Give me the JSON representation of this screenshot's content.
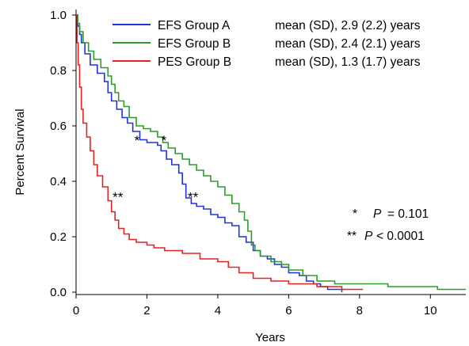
{
  "chart_data": {
    "type": "line",
    "xlabel": "Years",
    "ylabel": "Percent Survival",
    "xlim": [
      0,
      11
    ],
    "ylim": [
      0,
      1.0
    ],
    "x_ticks": [
      "0",
      "2",
      "4",
      "6",
      "8",
      "10"
    ],
    "y_ticks": [
      "0.0",
      "0.2",
      "0.4",
      "0.6",
      "0.8",
      "1.0"
    ],
    "grid": false,
    "legend_position": "top-right",
    "series": [
      {
        "name": "EFS Group A",
        "stat": "mean (SD),  2.9 (2.2) years",
        "color": "#1f35d6",
        "points": [
          [
            0,
            1.0
          ],
          [
            0.05,
            0.96
          ],
          [
            0.1,
            0.93
          ],
          [
            0.15,
            0.9
          ],
          [
            0.25,
            0.86
          ],
          [
            0.4,
            0.82
          ],
          [
            0.6,
            0.79
          ],
          [
            0.8,
            0.76
          ],
          [
            0.9,
            0.72
          ],
          [
            1.0,
            0.69
          ],
          [
            1.15,
            0.66
          ],
          [
            1.3,
            0.63
          ],
          [
            1.45,
            0.61
          ],
          [
            1.6,
            0.58
          ],
          [
            1.8,
            0.55
          ],
          [
            2.0,
            0.54
          ],
          [
            2.3,
            0.53
          ],
          [
            2.4,
            0.51
          ],
          [
            2.55,
            0.48
          ],
          [
            2.7,
            0.46
          ],
          [
            2.9,
            0.43
          ],
          [
            3.0,
            0.39
          ],
          [
            3.1,
            0.34
          ],
          [
            3.25,
            0.32
          ],
          [
            3.4,
            0.31
          ],
          [
            3.6,
            0.3
          ],
          [
            3.8,
            0.28
          ],
          [
            4.0,
            0.27
          ],
          [
            4.2,
            0.25
          ],
          [
            4.4,
            0.24
          ],
          [
            4.6,
            0.2
          ],
          [
            4.8,
            0.18
          ],
          [
            5.0,
            0.15
          ],
          [
            5.2,
            0.13
          ],
          [
            5.4,
            0.12
          ],
          [
            5.6,
            0.1
          ],
          [
            5.8,
            0.09
          ],
          [
            6.0,
            0.07
          ],
          [
            6.3,
            0.06
          ],
          [
            6.5,
            0.04
          ],
          [
            6.7,
            0.03
          ],
          [
            6.9,
            0.02
          ],
          [
            7.1,
            0.01
          ],
          [
            7.5,
            0.0
          ]
        ]
      },
      {
        "name": "EFS Group B",
        "stat": "mean (SD),  2.4 (2.1) years",
        "color": "#2e9a2e",
        "points": [
          [
            0,
            1.0
          ],
          [
            0.05,
            0.97
          ],
          [
            0.1,
            0.94
          ],
          [
            0.2,
            0.9
          ],
          [
            0.35,
            0.87
          ],
          [
            0.5,
            0.84
          ],
          [
            0.7,
            0.81
          ],
          [
            0.9,
            0.78
          ],
          [
            1.0,
            0.75
          ],
          [
            1.1,
            0.72
          ],
          [
            1.2,
            0.69
          ],
          [
            1.35,
            0.67
          ],
          [
            1.5,
            0.63
          ],
          [
            1.7,
            0.6
          ],
          [
            1.9,
            0.59
          ],
          [
            2.1,
            0.58
          ],
          [
            2.3,
            0.56
          ],
          [
            2.45,
            0.54
          ],
          [
            2.6,
            0.52
          ],
          [
            2.8,
            0.5
          ],
          [
            3.0,
            0.48
          ],
          [
            3.2,
            0.46
          ],
          [
            3.4,
            0.44
          ],
          [
            3.6,
            0.42
          ],
          [
            3.8,
            0.4
          ],
          [
            4.0,
            0.38
          ],
          [
            4.2,
            0.35
          ],
          [
            4.4,
            0.32
          ],
          [
            4.6,
            0.29
          ],
          [
            4.75,
            0.26
          ],
          [
            4.85,
            0.22
          ],
          [
            4.95,
            0.17
          ],
          [
            5.05,
            0.15
          ],
          [
            5.2,
            0.13
          ],
          [
            5.5,
            0.11
          ],
          [
            5.8,
            0.1
          ],
          [
            6.0,
            0.08
          ],
          [
            6.4,
            0.06
          ],
          [
            6.8,
            0.04
          ],
          [
            7.3,
            0.03
          ],
          [
            8.0,
            0.03
          ],
          [
            8.8,
            0.02
          ],
          [
            9.5,
            0.02
          ],
          [
            10.2,
            0.01
          ],
          [
            11.0,
            0.01
          ]
        ]
      },
      {
        "name": "PES Group B",
        "stat": "mean (SD),  1.3 (1.7) years",
        "color": "#e32222",
        "points": [
          [
            0,
            1.0
          ],
          [
            0.03,
            0.9
          ],
          [
            0.06,
            0.82
          ],
          [
            0.1,
            0.74
          ],
          [
            0.15,
            0.66
          ],
          [
            0.2,
            0.61
          ],
          [
            0.3,
            0.56
          ],
          [
            0.4,
            0.51
          ],
          [
            0.5,
            0.46
          ],
          [
            0.6,
            0.42
          ],
          [
            0.75,
            0.38
          ],
          [
            0.9,
            0.33
          ],
          [
            1.0,
            0.29
          ],
          [
            1.1,
            0.26
          ],
          [
            1.2,
            0.23
          ],
          [
            1.35,
            0.21
          ],
          [
            1.5,
            0.19
          ],
          [
            1.7,
            0.18
          ],
          [
            2.0,
            0.17
          ],
          [
            2.2,
            0.16
          ],
          [
            2.5,
            0.15
          ],
          [
            3.0,
            0.14
          ],
          [
            3.5,
            0.12
          ],
          [
            4.0,
            0.11
          ],
          [
            4.3,
            0.09
          ],
          [
            4.6,
            0.07
          ],
          [
            5.0,
            0.05
          ],
          [
            5.5,
            0.04
          ],
          [
            6.0,
            0.03
          ],
          [
            6.8,
            0.02
          ],
          [
            7.5,
            0.01
          ],
          [
            8.1,
            0.01
          ]
        ]
      }
    ],
    "annotations": [
      {
        "text": "*",
        "x": 1.72,
        "y": 0.555
      },
      {
        "text": "*",
        "x": 2.48,
        "y": 0.555
      },
      {
        "text": "**",
        "x": 1.18,
        "y": 0.35
      },
      {
        "text": "**",
        "x": 3.3,
        "y": 0.35
      }
    ],
    "p_values": [
      {
        "stars": "*",
        "p": "P",
        "rel": "= 0.101"
      },
      {
        "stars": "**",
        "p": "P",
        "rel": "< 0.0001"
      }
    ]
  }
}
